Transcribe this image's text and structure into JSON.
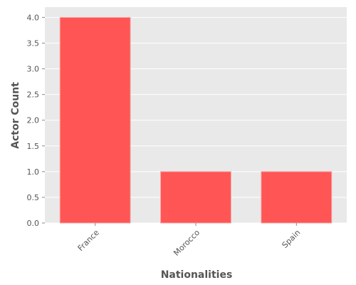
{
  "chart_data": {
    "type": "bar",
    "title": "",
    "xlabel": "Nationalities",
    "ylabel": "Actor Count",
    "categories": [
      "France",
      "Morocco",
      "Spain"
    ],
    "values": [
      4,
      1,
      1
    ],
    "ylim": [
      0,
      4.2
    ],
    "yticks": [
      0,
      0.5,
      1,
      1.5,
      2,
      2.5,
      3,
      3.5,
      4
    ],
    "ytick_labels": [
      "0.0",
      "0.5",
      "1.0",
      "1.5",
      "2.0",
      "2.5",
      "3.0",
      "3.5",
      "4.0"
    ],
    "grid": true,
    "legend": "none",
    "colors": {
      "bar": "#ff5555",
      "bar_edge": "#f7a8a8",
      "background": "#e9e9e9",
      "grid": "#ffffff",
      "text": "#555555"
    }
  }
}
